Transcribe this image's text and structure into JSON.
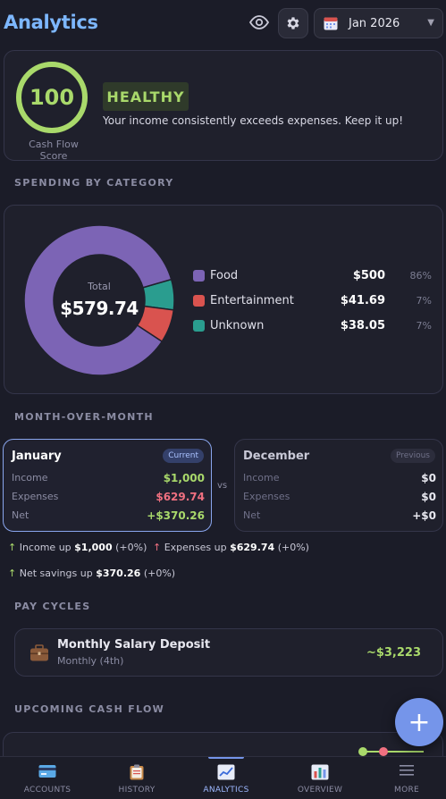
{
  "header": {
    "title": "Analytics",
    "month_label": "Jan 2026"
  },
  "score": {
    "value": "100",
    "fraction": 1.0,
    "caption": "Cash Flow Score",
    "status": "HEALTHY",
    "message": "Your income consistently exceeds expenses. Keep it up!"
  },
  "sections": {
    "spending": "SPENDING BY CATEGORY",
    "mom": "MONTH-OVER-MONTH",
    "pay_cycles": "PAY CYCLES",
    "upcoming": "UPCOMING CASH FLOW"
  },
  "spending": {
    "total_label": "Total",
    "total_value": "$579.74",
    "categories": [
      {
        "name": "Food",
        "amount": "$500",
        "pct": "86%",
        "value": 500,
        "color": "#7c64b5"
      },
      {
        "name": "Entertainment",
        "amount": "$41.69",
        "pct": "7%",
        "value": 41.69,
        "color": "#d9534f"
      },
      {
        "name": "Unknown",
        "amount": "$38.05",
        "pct": "7%",
        "value": 38.05,
        "color": "#2a9d8f"
      }
    ]
  },
  "mom": {
    "vs": "vs",
    "january": {
      "title": "January",
      "tag": "Current",
      "income_label": "Income",
      "income": "$1,000",
      "expenses_label": "Expenses",
      "expenses": "$629.74",
      "net_label": "Net",
      "net": "+$370.26"
    },
    "december": {
      "title": "December",
      "tag": "Previous",
      "income_label": "Income",
      "income": "$0",
      "expenses_label": "Expenses",
      "expenses": "$0",
      "net_label": "Net",
      "net": "+$0"
    },
    "changes": {
      "income_text": "Income up",
      "income_amount": "$1,000",
      "income_pct": "(+0%)",
      "expenses_text": "Expenses up",
      "expenses_amount": "$629.74",
      "expenses_pct": "(+0%)",
      "net_text": "Net savings up",
      "net_amount": "$370.26",
      "net_pct": "(+0%)"
    }
  },
  "pay_cycle": {
    "name": "Monthly Salary Deposit",
    "schedule": "Monthly (4th)",
    "amount": "~$3,223"
  },
  "fab_label": "+",
  "nav": [
    {
      "label": "ACCOUNTS",
      "icon": "credit-card-icon"
    },
    {
      "label": "HISTORY",
      "icon": "clipboard-icon"
    },
    {
      "label": "ANALYTICS",
      "icon": "trend-chart-icon",
      "active": true
    },
    {
      "label": "OVERVIEW",
      "icon": "bar-chart-icon"
    },
    {
      "label": "MORE",
      "icon": "menu-icon"
    }
  ]
}
